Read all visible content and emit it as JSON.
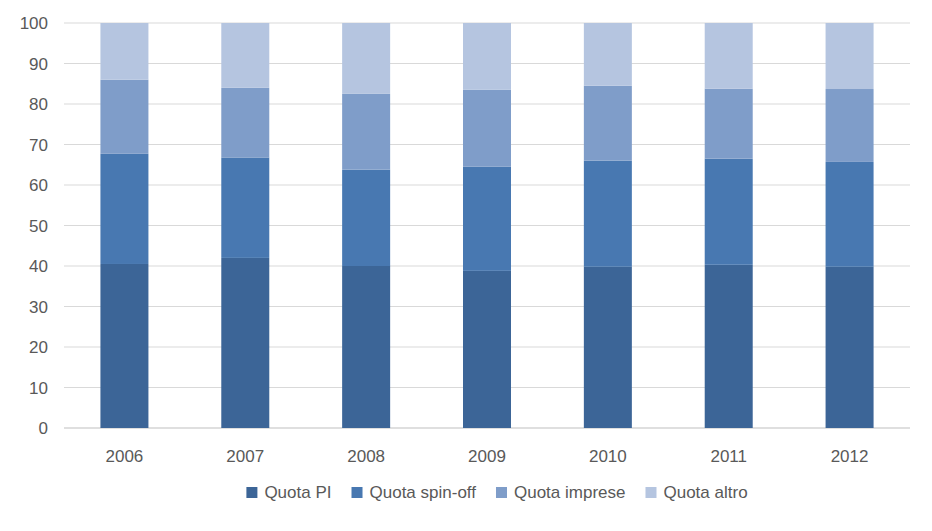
{
  "chart_data": {
    "type": "bar",
    "stacked": true,
    "grid": true,
    "legend": "bottom",
    "categories": [
      "2006",
      "2007",
      "2008",
      "2009",
      "2010",
      "2011",
      "2012"
    ],
    "series": [
      {
        "name": "Quota PI",
        "color": "#3c6597",
        "values": [
          40.5,
          42,
          40,
          38.8,
          39.8,
          40.3,
          39.8
        ]
      },
      {
        "name": "Quota spin-off",
        "color": "#4878b1",
        "values": [
          27.2,
          24.8,
          23.8,
          25.7,
          26.2,
          26.2,
          25.9
        ]
      },
      {
        "name": "Quota imprese",
        "color": "#7f9dc9",
        "values": [
          18.3,
          17.2,
          18.7,
          19,
          18.5,
          17.3,
          18
        ]
      },
      {
        "name": "Quota altro",
        "color": "#b5c5e0",
        "values": [
          14,
          16,
          17.5,
          16.5,
          15.5,
          16.2,
          16.3
        ]
      }
    ],
    "ylim": [
      0,
      100
    ],
    "yticks": [
      0,
      10,
      20,
      30,
      40,
      50,
      60,
      70,
      80,
      90,
      100
    ]
  }
}
